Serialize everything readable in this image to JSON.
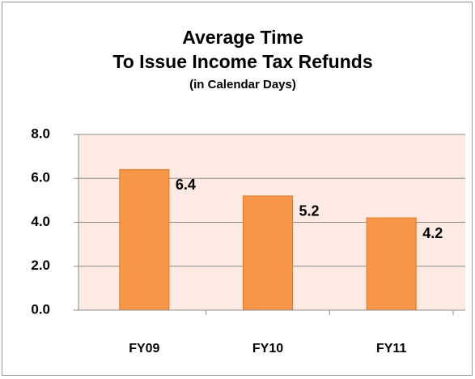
{
  "chart_data": {
    "type": "bar",
    "title": [
      "Average Time",
      "To Issue Income Tax Refunds"
    ],
    "subtitle": "(in Calendar Days)",
    "categories": [
      "FY09",
      "FY10",
      "FY11"
    ],
    "values": [
      6.4,
      5.2,
      4.2
    ],
    "color": "#f79646",
    "ylim": [
      0,
      8
    ],
    "yticks": [
      {
        "value": 0,
        "label": "0.0"
      },
      {
        "value": 2,
        "label": "2.0"
      },
      {
        "value": 4,
        "label": "4.0"
      },
      {
        "value": 6,
        "label": "6.0"
      },
      {
        "value": 8,
        "label": "8.0"
      }
    ],
    "grid": true,
    "plot_background": "#fdeae2"
  }
}
